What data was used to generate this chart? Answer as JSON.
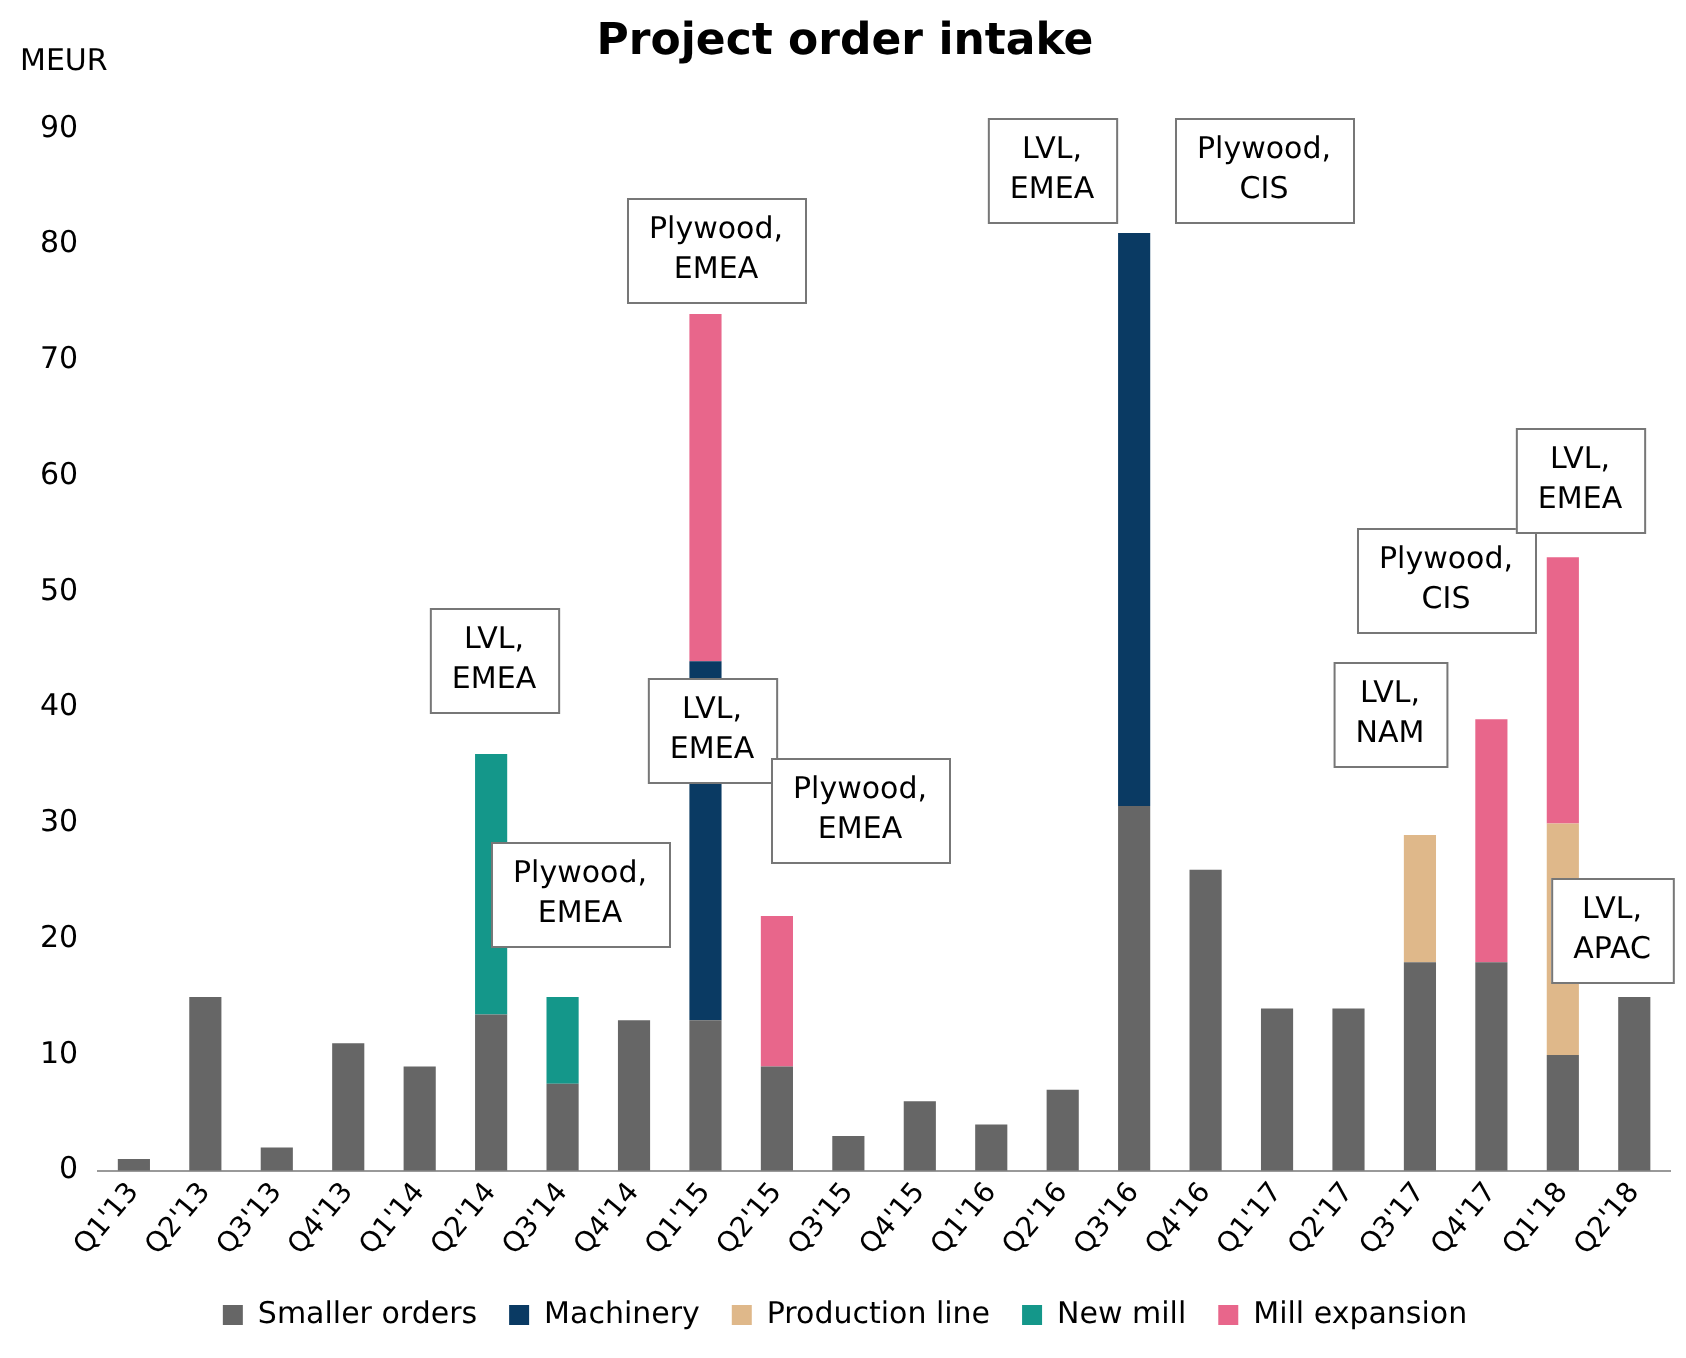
{
  "chart_data": {
    "type": "bar",
    "title": "Project order intake",
    "ylabel": "MEUR",
    "stacked": true,
    "grid": false,
    "legend": "bottom",
    "categories": [
      "Q1'13",
      "Q2'13",
      "Q3'13",
      "Q4'13",
      "Q1'14",
      "Q2'14",
      "Q3'14",
      "Q4'14",
      "Q1'15",
      "Q2'15",
      "Q3'15",
      "Q4'15",
      "Q1'16",
      "Q2'16",
      "Q3'16",
      "Q4'16",
      "Q1'17",
      "Q2'17",
      "Q3'17",
      "Q4'17",
      "Q1'18",
      "Q2'18"
    ],
    "series": [
      {
        "name": "Smaller orders",
        "color": "#666666",
        "values": [
          1,
          15,
          2,
          11,
          9,
          13.5,
          7.5,
          13,
          13,
          9,
          3,
          6,
          4,
          7,
          31.5,
          26,
          14,
          14,
          18,
          18,
          10,
          15
        ]
      },
      {
        "name": "Machinery",
        "color": "#0a3a63",
        "values": [
          null,
          null,
          null,
          null,
          null,
          null,
          null,
          null,
          31,
          null,
          null,
          null,
          null,
          null,
          49.5,
          null,
          null,
          null,
          null,
          null,
          null,
          null
        ]
      },
      {
        "name": "Production line",
        "color": "#dfb88a",
        "values": [
          null,
          null,
          null,
          null,
          null,
          null,
          null,
          null,
          null,
          null,
          null,
          null,
          null,
          null,
          null,
          null,
          null,
          null,
          11,
          null,
          20,
          null
        ]
      },
      {
        "name": "New mill",
        "color": "#14978a",
        "values": [
          null,
          null,
          null,
          null,
          null,
          22.5,
          7.5,
          null,
          null,
          null,
          null,
          null,
          null,
          null,
          null,
          null,
          null,
          null,
          null,
          null,
          null,
          null
        ]
      },
      {
        "name": "Mill expansion",
        "color": "#e8668b",
        "values": [
          null,
          null,
          null,
          null,
          null,
          null,
          null,
          null,
          30,
          13,
          null,
          null,
          null,
          null,
          null,
          null,
          null,
          null,
          null,
          21,
          23,
          null
        ]
      }
    ],
    "ylim": [
      0,
      90
    ],
    "yticks": [
      0,
      10,
      20,
      30,
      40,
      50,
      60,
      70,
      80,
      90
    ],
    "annotations": [
      "LVL,\nEMEA",
      "Plywood,\nEMEA",
      "Plywood,\nEMEA",
      "LVL,\nEMEA",
      "Plywood,\nEMEA",
      "LVL,\nEMEA",
      "Plywood,\nCIS",
      "LVL,\nNAM",
      "Plywood,\nCIS",
      "LVL,\nEMEA",
      "LVL,\nAPAC"
    ]
  }
}
